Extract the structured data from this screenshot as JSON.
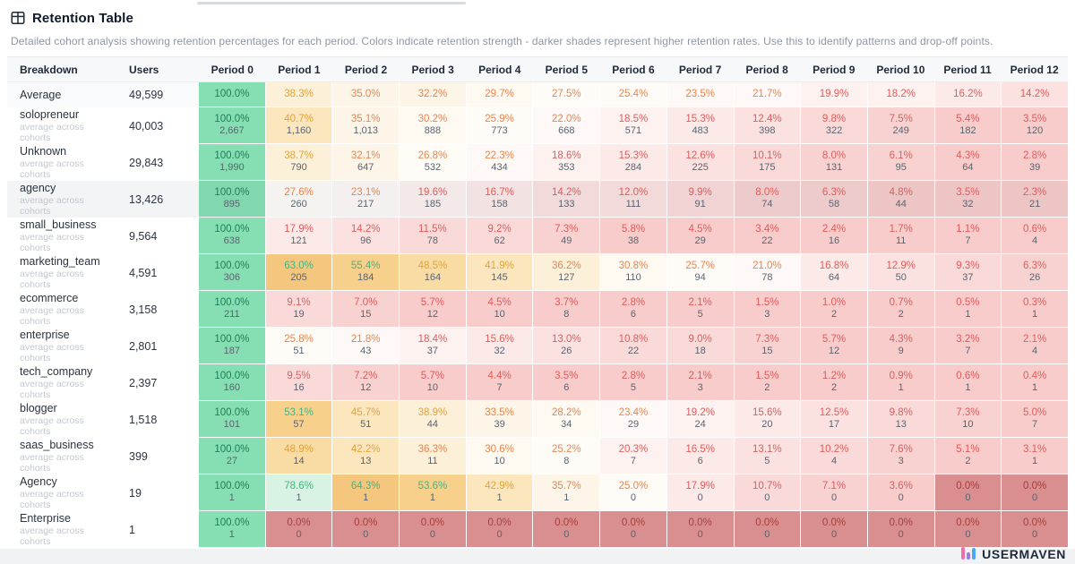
{
  "header": {
    "title": "Retention Table",
    "description": "Detailed cohort analysis showing retention percentages for each period. Colors indicate retention strength - darker shades represent higher retention rates. Use this to identify patterns and drop-off points."
  },
  "table": {
    "columns": [
      "Breakdown",
      "Users",
      "Period 0",
      "Period 1",
      "Period 2",
      "Period 3",
      "Period 4",
      "Period 5",
      "Period 6",
      "Period 7",
      "Period 8",
      "Period 9",
      "Period 10",
      "Period 11",
      "Period 12"
    ],
    "average_row": {
      "label": "Average",
      "users": "49,599",
      "percents": [
        100.0,
        38.3,
        35.0,
        32.2,
        29.7,
        27.5,
        25.4,
        23.5,
        21.7,
        19.9,
        18.2,
        16.2,
        14.2
      ]
    },
    "rows": [
      {
        "label": "solopreneur",
        "sublabel": "average across cohorts",
        "users": "40,003",
        "highlighted": false,
        "cells": [
          {
            "pct": 100.0,
            "count": "2,667"
          },
          {
            "pct": 40.7,
            "count": "1,160"
          },
          {
            "pct": 35.1,
            "count": "1,013"
          },
          {
            "pct": 30.2,
            "count": "888"
          },
          {
            "pct": 25.9,
            "count": "773"
          },
          {
            "pct": 22.0,
            "count": "668"
          },
          {
            "pct": 18.5,
            "count": "571"
          },
          {
            "pct": 15.3,
            "count": "483"
          },
          {
            "pct": 12.4,
            "count": "398"
          },
          {
            "pct": 9.8,
            "count": "322"
          },
          {
            "pct": 7.5,
            "count": "249"
          },
          {
            "pct": 5.4,
            "count": "182"
          },
          {
            "pct": 3.5,
            "count": "120"
          }
        ]
      },
      {
        "label": "Unknown",
        "sublabel": "average across cohorts",
        "users": "29,843",
        "highlighted": false,
        "cells": [
          {
            "pct": 100.0,
            "count": "1,990"
          },
          {
            "pct": 38.7,
            "count": "790"
          },
          {
            "pct": 32.1,
            "count": "647"
          },
          {
            "pct": 26.8,
            "count": "532"
          },
          {
            "pct": 22.3,
            "count": "434"
          },
          {
            "pct": 18.6,
            "count": "353"
          },
          {
            "pct": 15.3,
            "count": "284"
          },
          {
            "pct": 12.6,
            "count": "225"
          },
          {
            "pct": 10.1,
            "count": "175"
          },
          {
            "pct": 8.0,
            "count": "131"
          },
          {
            "pct": 6.1,
            "count": "95"
          },
          {
            "pct": 4.3,
            "count": "64"
          },
          {
            "pct": 2.8,
            "count": "39"
          }
        ]
      },
      {
        "label": "agency",
        "sublabel": "average across cohorts",
        "users": "13,426",
        "highlighted": true,
        "cells": [
          {
            "pct": 100.0,
            "count": "895"
          },
          {
            "pct": 27.6,
            "count": "260"
          },
          {
            "pct": 23.1,
            "count": "217"
          },
          {
            "pct": 19.6,
            "count": "185"
          },
          {
            "pct": 16.7,
            "count": "158"
          },
          {
            "pct": 14.2,
            "count": "133"
          },
          {
            "pct": 12.0,
            "count": "111"
          },
          {
            "pct": 9.9,
            "count": "91"
          },
          {
            "pct": 8.0,
            "count": "74"
          },
          {
            "pct": 6.3,
            "count": "58"
          },
          {
            "pct": 4.8,
            "count": "44"
          },
          {
            "pct": 3.5,
            "count": "32"
          },
          {
            "pct": 2.3,
            "count": "21"
          }
        ]
      },
      {
        "label": "small_business",
        "sublabel": "average across cohorts",
        "users": "9,564",
        "highlighted": false,
        "cells": [
          {
            "pct": 100.0,
            "count": "638"
          },
          {
            "pct": 17.9,
            "count": "121"
          },
          {
            "pct": 14.2,
            "count": "96"
          },
          {
            "pct": 11.5,
            "count": "78"
          },
          {
            "pct": 9.2,
            "count": "62"
          },
          {
            "pct": 7.3,
            "count": "49"
          },
          {
            "pct": 5.8,
            "count": "38"
          },
          {
            "pct": 4.5,
            "count": "29"
          },
          {
            "pct": 3.4,
            "count": "22"
          },
          {
            "pct": 2.4,
            "count": "16"
          },
          {
            "pct": 1.7,
            "count": "11"
          },
          {
            "pct": 1.1,
            "count": "7"
          },
          {
            "pct": 0.6,
            "count": "4"
          }
        ]
      },
      {
        "label": "marketing_team",
        "sublabel": "average across cohorts",
        "users": "4,591",
        "highlighted": false,
        "cells": [
          {
            "pct": 100.0,
            "count": "306"
          },
          {
            "pct": 63.0,
            "count": "205"
          },
          {
            "pct": 55.4,
            "count": "184"
          },
          {
            "pct": 48.5,
            "count": "164"
          },
          {
            "pct": 41.9,
            "count": "145"
          },
          {
            "pct": 36.2,
            "count": "127"
          },
          {
            "pct": 30.8,
            "count": "110"
          },
          {
            "pct": 25.7,
            "count": "94"
          },
          {
            "pct": 21.0,
            "count": "78"
          },
          {
            "pct": 16.8,
            "count": "64"
          },
          {
            "pct": 12.9,
            "count": "50"
          },
          {
            "pct": 9.3,
            "count": "37"
          },
          {
            "pct": 6.3,
            "count": "26"
          }
        ]
      },
      {
        "label": "ecommerce",
        "sublabel": "average across cohorts",
        "users": "3,158",
        "highlighted": false,
        "cells": [
          {
            "pct": 100.0,
            "count": "211"
          },
          {
            "pct": 9.1,
            "count": "19"
          },
          {
            "pct": 7.0,
            "count": "15"
          },
          {
            "pct": 5.7,
            "count": "12"
          },
          {
            "pct": 4.5,
            "count": "10"
          },
          {
            "pct": 3.7,
            "count": "8"
          },
          {
            "pct": 2.8,
            "count": "6"
          },
          {
            "pct": 2.1,
            "count": "5"
          },
          {
            "pct": 1.5,
            "count": "3"
          },
          {
            "pct": 1.0,
            "count": "2"
          },
          {
            "pct": 0.7,
            "count": "2"
          },
          {
            "pct": 0.5,
            "count": "1"
          },
          {
            "pct": 0.3,
            "count": "1"
          }
        ]
      },
      {
        "label": "enterprise",
        "sublabel": "average across cohorts",
        "users": "2,801",
        "highlighted": false,
        "cells": [
          {
            "pct": 100.0,
            "count": "187"
          },
          {
            "pct": 25.8,
            "count": "51"
          },
          {
            "pct": 21.8,
            "count": "43"
          },
          {
            "pct": 18.4,
            "count": "37"
          },
          {
            "pct": 15.6,
            "count": "32"
          },
          {
            "pct": 13.0,
            "count": "26"
          },
          {
            "pct": 10.8,
            "count": "22"
          },
          {
            "pct": 9.0,
            "count": "18"
          },
          {
            "pct": 7.3,
            "count": "15"
          },
          {
            "pct": 5.7,
            "count": "12"
          },
          {
            "pct": 4.3,
            "count": "9"
          },
          {
            "pct": 3.2,
            "count": "7"
          },
          {
            "pct": 2.1,
            "count": "4"
          }
        ]
      },
      {
        "label": "tech_company",
        "sublabel": "average across cohorts",
        "users": "2,397",
        "highlighted": false,
        "cells": [
          {
            "pct": 100.0,
            "count": "160"
          },
          {
            "pct": 9.5,
            "count": "16"
          },
          {
            "pct": 7.2,
            "count": "12"
          },
          {
            "pct": 5.7,
            "count": "10"
          },
          {
            "pct": 4.4,
            "count": "7"
          },
          {
            "pct": 3.5,
            "count": "6"
          },
          {
            "pct": 2.8,
            "count": "5"
          },
          {
            "pct": 2.1,
            "count": "3"
          },
          {
            "pct": 1.5,
            "count": "2"
          },
          {
            "pct": 1.2,
            "count": "2"
          },
          {
            "pct": 0.9,
            "count": "1"
          },
          {
            "pct": 0.6,
            "count": "1"
          },
          {
            "pct": 0.4,
            "count": "1"
          }
        ]
      },
      {
        "label": "blogger",
        "sublabel": "average across cohorts",
        "users": "1,518",
        "highlighted": false,
        "cells": [
          {
            "pct": 100.0,
            "count": "101"
          },
          {
            "pct": 53.1,
            "count": "57"
          },
          {
            "pct": 45.7,
            "count": "51"
          },
          {
            "pct": 38.9,
            "count": "44"
          },
          {
            "pct": 33.5,
            "count": "39"
          },
          {
            "pct": 28.2,
            "count": "34"
          },
          {
            "pct": 23.4,
            "count": "29"
          },
          {
            "pct": 19.2,
            "count": "24"
          },
          {
            "pct": 15.6,
            "count": "20"
          },
          {
            "pct": 12.5,
            "count": "17"
          },
          {
            "pct": 9.8,
            "count": "13"
          },
          {
            "pct": 7.3,
            "count": "10"
          },
          {
            "pct": 5.0,
            "count": "7"
          }
        ]
      },
      {
        "label": "saas_business",
        "sublabel": "average across cohorts",
        "users": "399",
        "highlighted": false,
        "cells": [
          {
            "pct": 100.0,
            "count": "27"
          },
          {
            "pct": 48.9,
            "count": "14"
          },
          {
            "pct": 42.2,
            "count": "13"
          },
          {
            "pct": 36.3,
            "count": "11"
          },
          {
            "pct": 30.6,
            "count": "10"
          },
          {
            "pct": 25.2,
            "count": "8"
          },
          {
            "pct": 20.3,
            "count": "7"
          },
          {
            "pct": 16.5,
            "count": "6"
          },
          {
            "pct": 13.1,
            "count": "5"
          },
          {
            "pct": 10.2,
            "count": "4"
          },
          {
            "pct": 7.6,
            "count": "3"
          },
          {
            "pct": 5.1,
            "count": "2"
          },
          {
            "pct": 3.1,
            "count": "1"
          }
        ]
      },
      {
        "label": "Agency",
        "sublabel": "average across cohorts",
        "users": "19",
        "highlighted": false,
        "cells": [
          {
            "pct": 100.0,
            "count": "1"
          },
          {
            "pct": 78.6,
            "count": "1"
          },
          {
            "pct": 64.3,
            "count": "1"
          },
          {
            "pct": 53.6,
            "count": "1"
          },
          {
            "pct": 42.9,
            "count": "1"
          },
          {
            "pct": 35.7,
            "count": "1"
          },
          {
            "pct": 25.0,
            "count": "0"
          },
          {
            "pct": 17.9,
            "count": "0"
          },
          {
            "pct": 10.7,
            "count": "0"
          },
          {
            "pct": 7.1,
            "count": "0"
          },
          {
            "pct": 3.6,
            "count": "0"
          },
          {
            "pct": 0.0,
            "count": "0"
          },
          {
            "pct": 0.0,
            "count": "0"
          }
        ]
      },
      {
        "label": "Enterprise",
        "sublabel": "average across cohorts",
        "users": "1",
        "highlighted": false,
        "cells": [
          {
            "pct": 100.0,
            "count": "1"
          },
          {
            "pct": 0.0,
            "count": "0"
          },
          {
            "pct": 0.0,
            "count": "0"
          },
          {
            "pct": 0.0,
            "count": "0"
          },
          {
            "pct": 0.0,
            "count": "0"
          },
          {
            "pct": 0.0,
            "count": "0"
          },
          {
            "pct": 0.0,
            "count": "0"
          },
          {
            "pct": 0.0,
            "count": "0"
          },
          {
            "pct": 0.0,
            "count": "0"
          },
          {
            "pct": 0.0,
            "count": "0"
          },
          {
            "pct": 0.0,
            "count": "0"
          },
          {
            "pct": 0.0,
            "count": "0"
          },
          {
            "pct": 0.0,
            "count": "0"
          }
        ]
      }
    ]
  },
  "footer": {
    "brand": "USERMAVEN"
  },
  "colors": {
    "brand_pink": "#F06DA8",
    "brand_purple": "#9F7AEA",
    "brand_blue": "#4AA8F0",
    "full_retention_bg": "#85DFB2",
    "zero_retention_bg": "#D98F8F",
    "bg_scale": [
      {
        "min": 100,
        "bg": "#85DFB2"
      },
      {
        "min": 70,
        "bg": "#D8F3E4"
      },
      {
        "min": 58,
        "bg": "#F5C77E"
      },
      {
        "min": 52,
        "bg": "#F7D08C"
      },
      {
        "min": 46,
        "bg": "#F9DCA4"
      },
      {
        "min": 40,
        "bg": "#FBE6BE"
      },
      {
        "min": 36,
        "bg": "#FCF0D8"
      },
      {
        "min": 32,
        "bg": "#FDF6E8"
      },
      {
        "min": 28,
        "bg": "#FEFAF2"
      },
      {
        "min": 25,
        "bg": "#FFFCF8"
      },
      {
        "min": 21,
        "bg": "#FEF9F7"
      },
      {
        "min": 18,
        "bg": "#FDF2F0"
      },
      {
        "min": 15,
        "bg": "#FCEAE8"
      },
      {
        "min": 12,
        "bg": "#FBE2E0"
      },
      {
        "min": 9,
        "bg": "#FADAD8"
      },
      {
        "min": 6,
        "bg": "#F8D2D1"
      },
      {
        "min": 0.0001,
        "bg": "#F7CCCB"
      },
      {
        "min": 0,
        "bg": "#D98F8F"
      }
    ],
    "text_scale": [
      {
        "min": 100,
        "color": "#1F7E57"
      },
      {
        "min": 50,
        "color": "#45B380"
      },
      {
        "min": 37,
        "color": "#E3A23C"
      },
      {
        "min": 21,
        "color": "#E8854E"
      },
      {
        "min": 0.0001,
        "color": "#E05C5C"
      },
      {
        "min": 0,
        "color": "#A63D3D"
      }
    ]
  }
}
